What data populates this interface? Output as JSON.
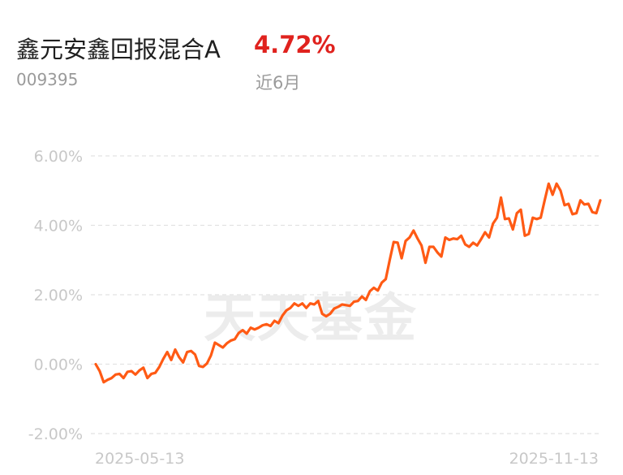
{
  "header": {
    "fund_name": "鑫元安鑫回报混合A",
    "return_value": "4.72%",
    "fund_code": "009395",
    "period_label": "近6月"
  },
  "watermark": "天天基金",
  "colors": {
    "line": "#ff5a14",
    "return_text": "#e0221e",
    "grid": "#e2e2e2",
    "axis_text": "#c8c8c8"
  },
  "chart_data": {
    "type": "line",
    "title": "",
    "xlabel": "",
    "ylabel": "",
    "ylim": [
      -2,
      6
    ],
    "yticks": [
      6,
      4,
      2,
      0,
      -2
    ],
    "ytick_labels": [
      "6.00%",
      "4.00%",
      "2.00%",
      "0.00%",
      "-2.00%"
    ],
    "xtick_labels": [
      "2025-05-13",
      "2025-11-13"
    ],
    "grid": true,
    "legend": "none",
    "series": [
      {
        "values": [
          0.0,
          -0.2,
          -0.52,
          -0.45,
          -0.4,
          -0.3,
          -0.28,
          -0.4,
          -0.22,
          -0.2,
          -0.3,
          -0.18,
          -0.1,
          -0.4,
          -0.28,
          -0.25,
          -0.08,
          0.15,
          0.35,
          0.12,
          0.42,
          0.2,
          0.05,
          0.35,
          0.38,
          0.28,
          -0.05,
          -0.08,
          0.02,
          0.25,
          0.62,
          0.55,
          0.48,
          0.6,
          0.68,
          0.72,
          0.9,
          0.98,
          0.88,
          1.05,
          1.0,
          1.05,
          1.12,
          1.15,
          1.1,
          1.25,
          1.18,
          1.4,
          1.55,
          1.62,
          1.75,
          1.68,
          1.75,
          1.62,
          1.75,
          1.72,
          1.82,
          1.45,
          1.38,
          1.45,
          1.6,
          1.65,
          1.72,
          1.7,
          1.68,
          1.8,
          1.82,
          1.95,
          1.85,
          2.1,
          2.2,
          2.12,
          2.35,
          2.45,
          3.0,
          3.52,
          3.5,
          3.05,
          3.55,
          3.65,
          3.85,
          3.62,
          3.42,
          2.92,
          3.38,
          3.38,
          3.22,
          3.1,
          3.65,
          3.58,
          3.62,
          3.6,
          3.7,
          3.45,
          3.38,
          3.5,
          3.42,
          3.6,
          3.8,
          3.65,
          4.05,
          4.22,
          4.8,
          4.18,
          4.2,
          3.88,
          4.35,
          4.45,
          3.7,
          3.75,
          4.22,
          4.18,
          4.22,
          4.72,
          5.2,
          4.88,
          5.2,
          5.0,
          4.58,
          4.62,
          4.32,
          4.35,
          4.72,
          4.6,
          4.62,
          4.38,
          4.35,
          4.72
        ]
      }
    ]
  }
}
